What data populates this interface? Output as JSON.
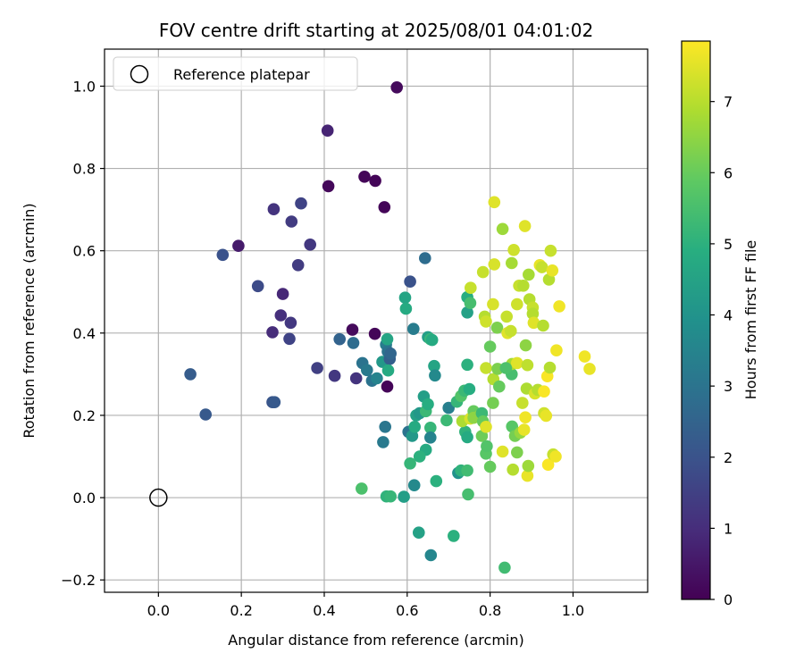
{
  "chart_data": {
    "type": "scatter",
    "title": "FOV centre drift starting at 2025/08/01 04:01:02",
    "xlabel": "Angular distance from reference (arcmin)",
    "ylabel": "Rotation from reference (arcmin)",
    "xlim": [
      -0.13,
      1.18
    ],
    "ylim": [
      -0.23,
      1.09
    ],
    "xticks": [
      0.0,
      0.2,
      0.4,
      0.6,
      0.8,
      1.0
    ],
    "xtick_labels": [
      "0.0",
      "0.2",
      "0.4",
      "0.6",
      "0.8",
      "1.0"
    ],
    "yticks": [
      -0.2,
      0.0,
      0.2,
      0.4,
      0.6,
      0.8,
      1.0
    ],
    "ytick_labels": [
      "−0.2",
      "0.0",
      "0.2",
      "0.4",
      "0.6",
      "0.8",
      "1.0"
    ],
    "grid": true,
    "legend": {
      "placement": "top-left",
      "entries": [
        "Reference platepar"
      ]
    },
    "reference": {
      "x": 0.0,
      "y": 0.0
    },
    "colorbar": {
      "label": "Hours from first FF file",
      "colormap": "viridis",
      "range": [
        0,
        7.85
      ],
      "ticks": [
        0,
        1,
        2,
        3,
        4,
        5,
        6,
        7
      ],
      "tick_labels": [
        "0",
        "1",
        "2",
        "3",
        "4",
        "5",
        "6",
        "7"
      ]
    },
    "points": [
      [
        0.575,
        0.997,
        0.2
      ],
      [
        0.41,
        0.757,
        0.15
      ],
      [
        0.497,
        0.78,
        0.1
      ],
      [
        0.523,
        0.77,
        0.1
      ],
      [
        0.545,
        0.706,
        0.1
      ],
      [
        0.552,
        0.27,
        0.1
      ],
      [
        0.468,
        0.408,
        0.2
      ],
      [
        0.522,
        0.398,
        0.1
      ],
      [
        0.408,
        0.892,
        0.8
      ],
      [
        0.193,
        0.612,
        0.6
      ],
      [
        0.278,
        0.701,
        1.2
      ],
      [
        0.321,
        0.671,
        1.4
      ],
      [
        0.344,
        0.715,
        1.6
      ],
      [
        0.366,
        0.615,
        1.3
      ],
      [
        0.337,
        0.565,
        1.4
      ],
      [
        0.3,
        0.495,
        0.9
      ],
      [
        0.295,
        0.443,
        1.1
      ],
      [
        0.275,
        0.402,
        1.0
      ],
      [
        0.319,
        0.425,
        1.3
      ],
      [
        0.316,
        0.386,
        1.6
      ],
      [
        0.24,
        0.514,
        1.8
      ],
      [
        0.155,
        0.59,
        2.0
      ],
      [
        0.383,
        0.315,
        1.5
      ],
      [
        0.425,
        0.296,
        1.3
      ],
      [
        0.477,
        0.29,
        1.2
      ],
      [
        0.077,
        0.3,
        2.3
      ],
      [
        0.114,
        0.202,
        2.2
      ],
      [
        0.275,
        0.232,
        2.1
      ],
      [
        0.28,
        0.232,
        2.2
      ],
      [
        0.437,
        0.385,
        2.5
      ],
      [
        0.47,
        0.376,
        2.8
      ],
      [
        0.492,
        0.327,
        3.0
      ],
      [
        0.503,
        0.31,
        3.2
      ],
      [
        0.515,
        0.284,
        3.0
      ],
      [
        0.527,
        0.29,
        3.5
      ],
      [
        0.54,
        0.33,
        4.2
      ],
      [
        0.549,
        0.372,
        3.3
      ],
      [
        0.553,
        0.355,
        3.0
      ],
      [
        0.558,
        0.337,
        2.4
      ],
      [
        0.56,
        0.35,
        2.6
      ],
      [
        0.552,
        0.385,
        4.6
      ],
      [
        0.554,
        0.309,
        4.8
      ],
      [
        0.542,
        0.135,
        3.2
      ],
      [
        0.547,
        0.172,
        3.1
      ],
      [
        0.607,
        0.525,
        2.0
      ],
      [
        0.643,
        0.582,
        2.8
      ],
      [
        0.615,
        0.41,
        3.3
      ],
      [
        0.595,
        0.486,
        4.6
      ],
      [
        0.597,
        0.459,
        4.8
      ],
      [
        0.65,
        0.39,
        4.4
      ],
      [
        0.656,
        0.385,
        5.2
      ],
      [
        0.66,
        0.383,
        4.8
      ],
      [
        0.665,
        0.32,
        4.6
      ],
      [
        0.667,
        0.297,
        3.7
      ],
      [
        0.603,
        0.16,
        3.0
      ],
      [
        0.612,
        0.15,
        4.2
      ],
      [
        0.618,
        0.172,
        4.8
      ],
      [
        0.622,
        0.2,
        4.5
      ],
      [
        0.63,
        0.205,
        4.2
      ],
      [
        0.64,
        0.246,
        4.4
      ],
      [
        0.645,
        0.21,
        5.3
      ],
      [
        0.65,
        0.227,
        4.9
      ],
      [
        0.656,
        0.17,
        5.2
      ],
      [
        0.656,
        0.146,
        3.5
      ],
      [
        0.645,
        0.116,
        4.8
      ],
      [
        0.63,
        0.1,
        5.0
      ],
      [
        0.607,
        0.083,
        5.2
      ],
      [
        0.617,
        0.03,
        3.7
      ],
      [
        0.67,
        0.04,
        5.0
      ],
      [
        0.628,
        -0.085,
        4.5
      ],
      [
        0.657,
        -0.14,
        3.6
      ],
      [
        0.49,
        0.022,
        5.6
      ],
      [
        0.55,
        0.003,
        5.1
      ],
      [
        0.56,
        0.003,
        5.2
      ],
      [
        0.592,
        0.002,
        4.4
      ],
      [
        0.695,
        0.188,
        5.3
      ],
      [
        0.7,
        0.218,
        3.4
      ],
      [
        0.72,
        0.233,
        5.2
      ],
      [
        0.712,
        -0.093,
        5.0
      ],
      [
        0.723,
        0.06,
        4.0
      ],
      [
        0.73,
        0.066,
        5.1
      ],
      [
        0.73,
        0.247,
        5.7
      ],
      [
        0.738,
        0.26,
        5.3
      ],
      [
        0.74,
        0.16,
        5.1
      ],
      [
        0.745,
        0.147,
        4.8
      ],
      [
        0.745,
        0.066,
        5.4
      ],
      [
        0.745,
        0.323,
        5.0
      ],
      [
        0.745,
        0.45,
        4.5
      ],
      [
        0.745,
        0.487,
        4.9
      ],
      [
        0.752,
        0.473,
        5.5
      ],
      [
        0.75,
        0.264,
        4.9
      ],
      [
        0.747,
        0.008,
        5.5
      ],
      [
        0.733,
        0.186,
        6.9
      ],
      [
        0.752,
        0.192,
        7.4
      ],
      [
        0.753,
        0.51,
        7.2
      ],
      [
        0.76,
        0.21,
        6.0
      ],
      [
        0.76,
        0.194,
        6.5
      ],
      [
        0.775,
        0.2,
        6.5
      ],
      [
        0.78,
        0.205,
        5.3
      ],
      [
        0.783,
        0.185,
        6.0
      ],
      [
        0.78,
        0.15,
        6.1
      ],
      [
        0.79,
        0.107,
        5.8
      ],
      [
        0.792,
        0.125,
        5.7
      ],
      [
        0.8,
        0.075,
        6.0
      ],
      [
        0.79,
        0.172,
        7.5
      ],
      [
        0.783,
        0.548,
        7.2
      ],
      [
        0.787,
        0.44,
        7.0
      ],
      [
        0.79,
        0.428,
        7.3
      ],
      [
        0.79,
        0.315,
        7.2
      ],
      [
        0.8,
        0.367,
        6.0
      ],
      [
        0.807,
        0.47,
        7.4
      ],
      [
        0.808,
        0.288,
        7.0
      ],
      [
        0.807,
        0.23,
        6.2
      ],
      [
        0.81,
        0.718,
        7.5
      ],
      [
        0.81,
        0.567,
        7.4
      ],
      [
        0.818,
        0.313,
        6.3
      ],
      [
        0.817,
        0.413,
        6.3
      ],
      [
        0.83,
        0.653,
        6.7
      ],
      [
        0.83,
        0.112,
        7.5
      ],
      [
        0.835,
        -0.17,
        5.4
      ],
      [
        0.84,
        0.44,
        7.2
      ],
      [
        0.842,
        0.4,
        7.5
      ],
      [
        0.85,
        0.405,
        7.2
      ],
      [
        0.852,
        0.57,
        6.8
      ],
      [
        0.852,
        0.3,
        5.5
      ],
      [
        0.853,
        0.173,
        5.8
      ],
      [
        0.853,
        0.325,
        6.8
      ],
      [
        0.855,
        0.068,
        7.0
      ],
      [
        0.857,
        0.602,
        7.3
      ],
      [
        0.86,
        0.15,
        6.2
      ],
      [
        0.865,
        0.11,
        6.3
      ],
      [
        0.865,
        0.327,
        7.5
      ],
      [
        0.865,
        0.47,
        7.3
      ],
      [
        0.87,
        0.515,
        7.2
      ],
      [
        0.873,
        0.158,
        6.6
      ],
      [
        0.878,
        0.23,
        7.2
      ],
      [
        0.88,
        0.515,
        7.0
      ],
      [
        0.884,
        0.66,
        7.5
      ],
      [
        0.882,
        0.165,
        7.6
      ],
      [
        0.885,
        0.195,
        7.7
      ],
      [
        0.886,
        0.37,
        6.5
      ],
      [
        0.888,
        0.265,
        6.9
      ],
      [
        0.89,
        0.322,
        7.1
      ],
      [
        0.89,
        0.053,
        7.6
      ],
      [
        0.892,
        0.077,
        6.7
      ],
      [
        0.893,
        0.542,
        6.8
      ],
      [
        0.895,
        0.482,
        7.0
      ],
      [
        0.903,
        0.462,
        7.2
      ],
      [
        0.903,
        0.447,
        7.0
      ],
      [
        0.905,
        0.425,
        7.5
      ],
      [
        0.908,
        0.253,
        7.4
      ],
      [
        0.915,
        0.262,
        7.0
      ],
      [
        0.92,
        0.565,
        7.6
      ],
      [
        0.925,
        0.56,
        7.2
      ],
      [
        0.928,
        0.418,
        7.0
      ],
      [
        0.93,
        0.258,
        7.8
      ],
      [
        0.93,
        0.205,
        7.3
      ],
      [
        0.935,
        0.199,
        7.6
      ],
      [
        0.938,
        0.295,
        7.8
      ],
      [
        0.94,
        0.08,
        7.8
      ],
      [
        0.942,
        0.53,
        7.0
      ],
      [
        0.944,
        0.316,
        7.0
      ],
      [
        0.946,
        0.6,
        7.2
      ],
      [
        0.95,
        0.552,
        7.6
      ],
      [
        0.952,
        0.105,
        7.2
      ],
      [
        0.958,
        0.1,
        7.7
      ],
      [
        0.96,
        0.358,
        7.7
      ],
      [
        0.967,
        0.465,
        7.7
      ],
      [
        1.028,
        0.343,
        7.7
      ],
      [
        1.04,
        0.313,
        7.6
      ],
      [
        0.838,
        0.315,
        5.6
      ],
      [
        0.822,
        0.27,
        6.0
      ]
    ]
  }
}
